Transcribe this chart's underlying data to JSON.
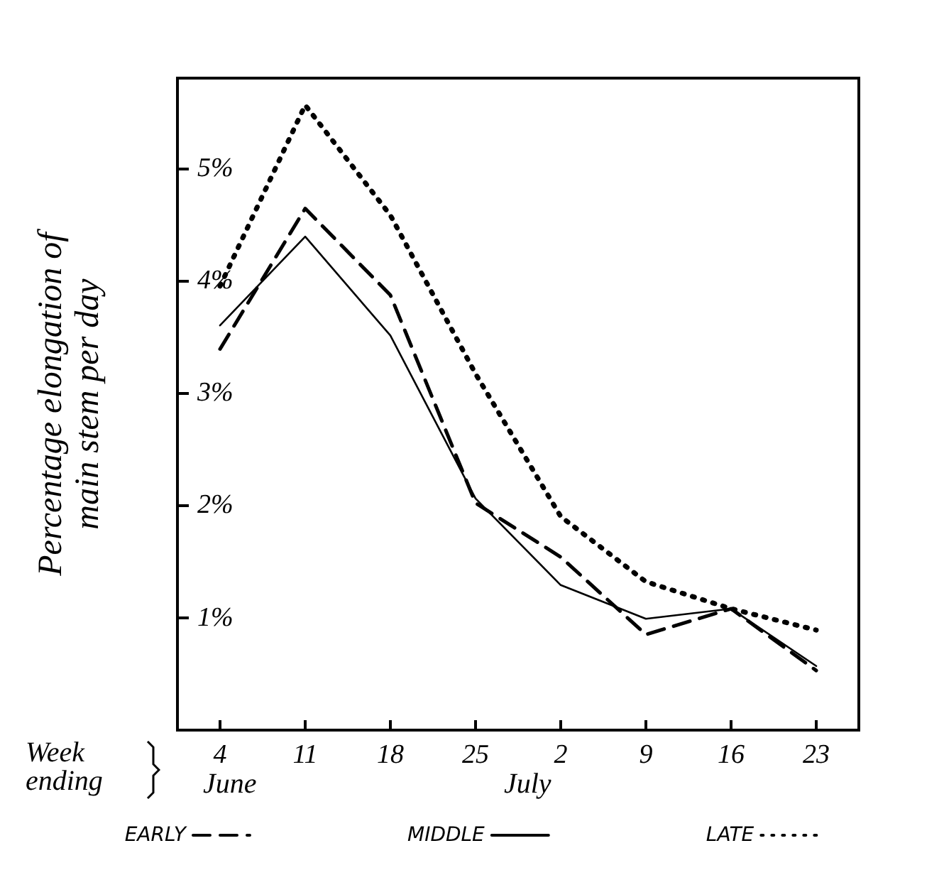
{
  "chart_data": {
    "type": "line",
    "ylabel": "Percentage elongation of\nmain stem per day",
    "categories": [
      "4",
      "11",
      "18",
      "25",
      "2",
      "9",
      "16",
      "23"
    ],
    "series": [
      {
        "name": "EARLY",
        "color": "#000000",
        "line_style": "dashed",
        "values": [
          3.39,
          4.64,
          3.87,
          2.02,
          1.54,
          0.85,
          1.08,
          0.53
        ]
      },
      {
        "name": "MIDDLE",
        "color": "#000000",
        "line_style": "solid",
        "values": [
          3.6,
          4.39,
          3.51,
          2.06,
          1.29,
          0.99,
          1.08,
          0.57
        ]
      },
      {
        "name": "LATE",
        "color": "#000000",
        "line_style": "dotted",
        "values": [
          3.95,
          5.56,
          4.58,
          3.17,
          1.9,
          1.32,
          1.08,
          0.89
        ]
      }
    ],
    "ylim": [
      0,
      5.8
    ],
    "yticks": [
      {
        "value": 1,
        "label": "1%"
      },
      {
        "value": 2,
        "label": "2%"
      },
      {
        "value": 3,
        "label": "3%"
      },
      {
        "value": 4,
        "label": "4%"
      },
      {
        "value": 5,
        "label": "5%"
      }
    ],
    "annotations": [
      "Week\nending",
      "June",
      "July"
    ],
    "legend": "bottom",
    "grid": false,
    "marker": "none"
  }
}
